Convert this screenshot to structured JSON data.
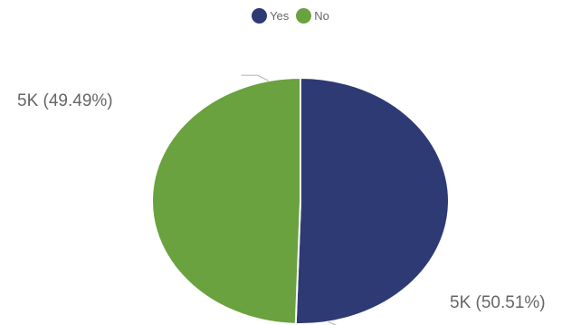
{
  "chart_data": {
    "type": "pie",
    "legend_position": "top-center",
    "series": [
      {
        "name": "Yes",
        "value": 50.51,
        "label": "5K (50.51%)",
        "color": "#2e3a73"
      },
      {
        "name": "No",
        "value": 49.49,
        "label": "5K (49.49%)",
        "color": "#69a23e"
      }
    ]
  }
}
